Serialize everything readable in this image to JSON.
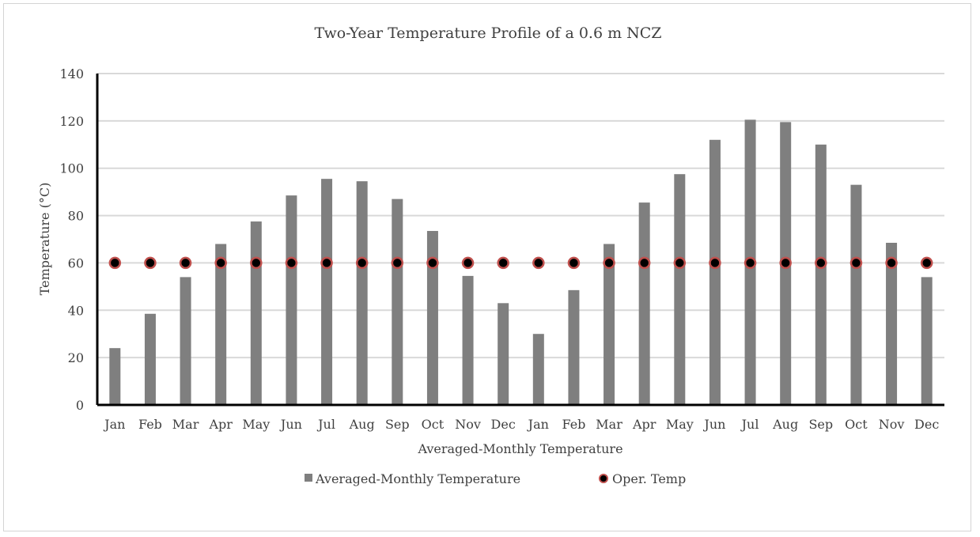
{
  "chart_data": {
    "type": "bar",
    "title": "Two-Year Temperature Profile of a 0.6 m NCZ",
    "xlabel": "Averaged-Monthly Temperature",
    "ylabel": "Temperature (°C)",
    "ylim": [
      0,
      140
    ],
    "yticks": [
      0,
      20,
      40,
      60,
      80,
      100,
      120,
      140
    ],
    "grid": true,
    "legend_position": "bottom",
    "categories": [
      "Jan",
      "Feb",
      "Mar",
      "Apr",
      "May",
      "Jun",
      "Jul",
      "Aug",
      "Sep",
      "Oct",
      "Nov",
      "Dec",
      "Jan",
      "Feb",
      "Mar",
      "Apr",
      "May",
      "Jun",
      "Jul",
      "Aug",
      "Sep",
      "Oct",
      "Nov",
      "Dec"
    ],
    "series": [
      {
        "name": "Averaged-Monthly Temperature",
        "kind": "bar",
        "color": "#7f7f7f",
        "values": [
          24,
          38.5,
          54,
          68,
          77.5,
          88.5,
          95.5,
          94.5,
          87,
          73.5,
          54.5,
          43,
          30,
          48.5,
          68,
          85.5,
          97.5,
          112,
          120.5,
          119.5,
          110,
          93,
          68.5,
          54
        ]
      },
      {
        "name": "Oper. Temp",
        "kind": "marker",
        "color": "#000000",
        "edge_color": "#c0504d",
        "values": [
          60,
          60,
          60,
          60,
          60,
          60,
          60,
          60,
          60,
          60,
          60,
          60,
          60,
          60,
          60,
          60,
          60,
          60,
          60,
          60,
          60,
          60,
          60,
          60
        ]
      }
    ]
  }
}
